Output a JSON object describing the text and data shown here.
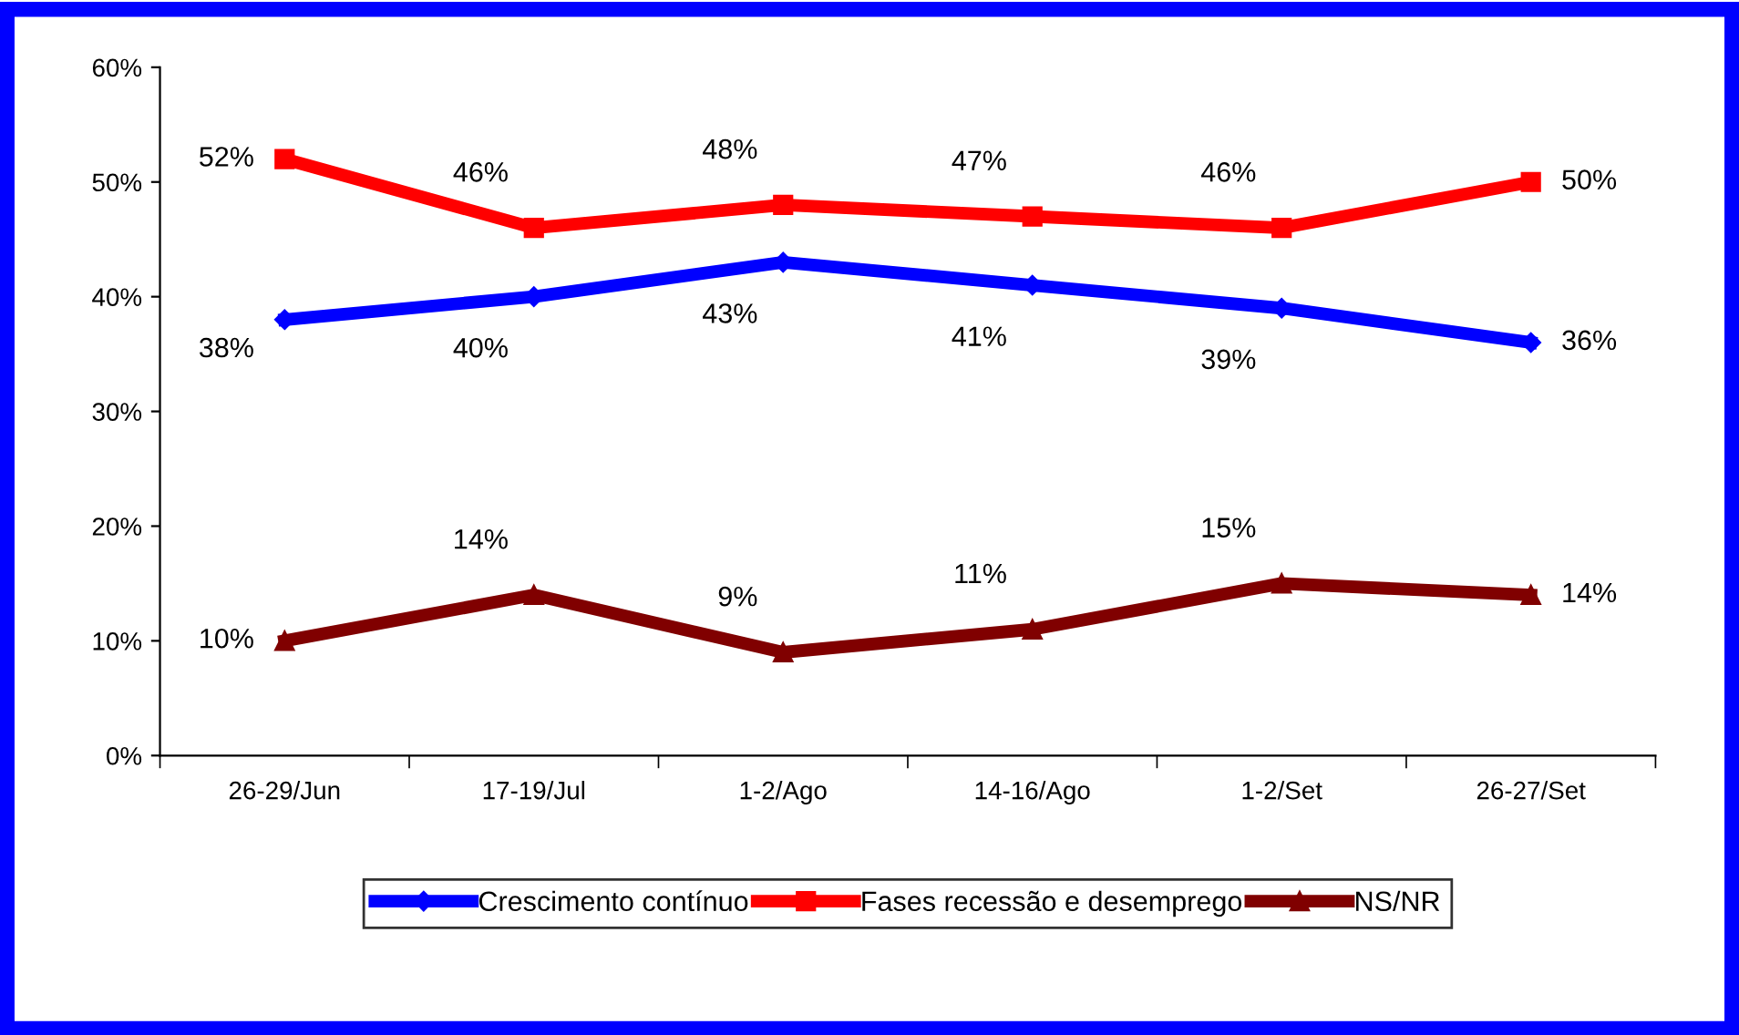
{
  "chart_data": {
    "type": "line",
    "categories": [
      "26-29/Jun",
      "17-19/Jul",
      "1-2/Ago",
      "14-16/Ago",
      "1-2/Set",
      "26-27/Set"
    ],
    "series": [
      {
        "name": "Crescimento contínuo",
        "color": "#0000ff",
        "marker": "diamond",
        "values": [
          38,
          40,
          43,
          41,
          39,
          36
        ],
        "value_labels": [
          "38%",
          "40%",
          "43%",
          "41%",
          "39%",
          "36%"
        ]
      },
      {
        "name": "Fases recessão e desemprego",
        "color": "#ff0000",
        "marker": "square",
        "values": [
          52,
          46,
          48,
          47,
          46,
          50
        ],
        "value_labels": [
          "52%",
          "46%",
          "48%",
          "47%",
          "46%",
          "50%"
        ]
      },
      {
        "name": "NS/NR",
        "color": "#800000",
        "marker": "triangle",
        "values": [
          10,
          14,
          9,
          11,
          15,
          14
        ],
        "value_labels": [
          "10%",
          "14%",
          "9%",
          "11%",
          "15%",
          "14%"
        ]
      }
    ],
    "ylim": [
      0,
      60
    ],
    "yticks": [
      {
        "value": 0,
        "label": "0%"
      },
      {
        "value": 10,
        "label": "10%"
      },
      {
        "value": 20,
        "label": "20%"
      },
      {
        "value": 30,
        "label": "30%"
      },
      {
        "value": 40,
        "label": "40%"
      },
      {
        "value": 50,
        "label": "50%"
      },
      {
        "value": 60,
        "label": "60%"
      }
    ],
    "grid": false,
    "legend": "bottom",
    "line_style": "solid"
  }
}
